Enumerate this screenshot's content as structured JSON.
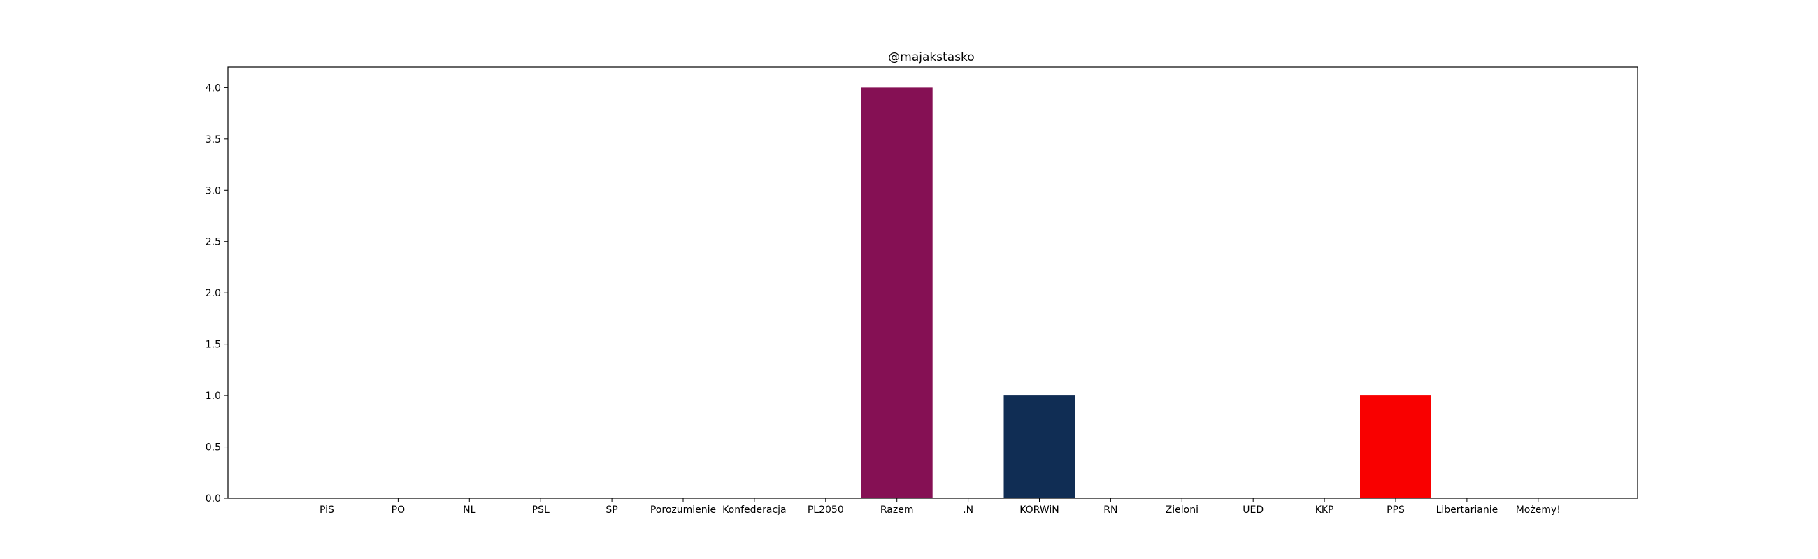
{
  "chart_data": {
    "type": "bar",
    "title": "@majakstasko",
    "xlabel": "",
    "ylabel": "",
    "categories": [
      "PiS",
      "PO",
      "NL",
      "PSL",
      "SP",
      "Porozumienie",
      "Konfederacja",
      "PL2050",
      "Razem",
      ".N",
      "KORWiN",
      "RN",
      "Zieloni",
      "UED",
      "KKP",
      "PPS",
      "Libertarianie",
      "Możemy!"
    ],
    "values": [
      0,
      0,
      0,
      0,
      0,
      0,
      0,
      0,
      4,
      0,
      1,
      0,
      0,
      0,
      0,
      1,
      0,
      0
    ],
    "colors": [
      "#1f77b4",
      "#1f77b4",
      "#1f77b4",
      "#1f77b4",
      "#1f77b4",
      "#1f77b4",
      "#1f77b4",
      "#1f77b4",
      "#851054",
      "#1f77b4",
      "#102d54",
      "#1f77b4",
      "#1f77b4",
      "#1f77b4",
      "#1f77b4",
      "#f90000",
      "#1f77b4",
      "#1f77b4"
    ],
    "ylim": [
      0,
      4.2
    ],
    "yticks": [
      "0.0",
      "0.5",
      "1.0",
      "1.5",
      "2.0",
      "2.5",
      "3.0",
      "3.5",
      "4.0"
    ],
    "grid": false,
    "legend": "none"
  }
}
